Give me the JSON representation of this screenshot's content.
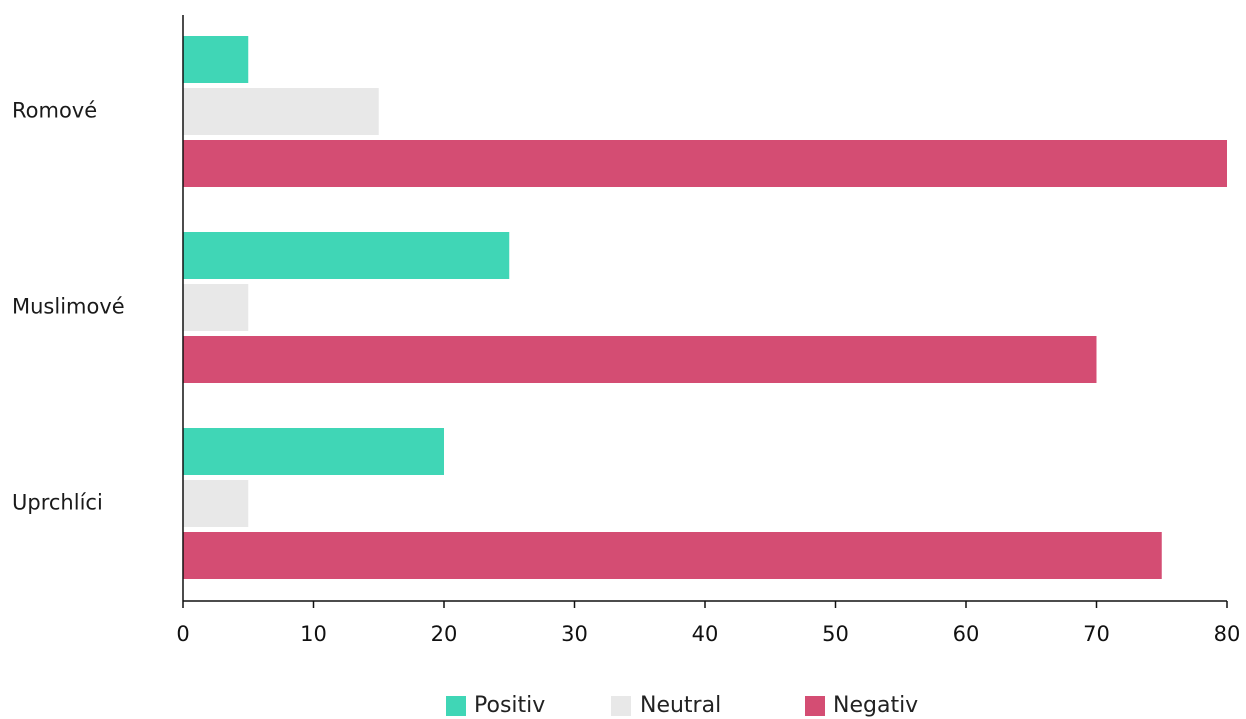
{
  "chart_data": {
    "type": "bar",
    "orientation": "horizontal",
    "categories": [
      "Romové",
      "Muslimové",
      "Uprchlíci"
    ],
    "series": [
      {
        "name": "Positiv",
        "color": "#40d6b6",
        "values": [
          5,
          25,
          20
        ]
      },
      {
        "name": "Neutral",
        "color": "#e8e8e8",
        "values": [
          15,
          5,
          5
        ]
      },
      {
        "name": "Negativ",
        "color": "#d44d73",
        "values": [
          80,
          70,
          75
        ]
      }
    ],
    "xlim": [
      0,
      80
    ],
    "xticks": [
      0,
      10,
      20,
      30,
      40,
      50,
      60,
      70,
      80
    ],
    "xtick_labels": [
      "0",
      "10",
      "20",
      "30",
      "40",
      "50",
      "60",
      "70",
      "80"
    ],
    "title": "",
    "xlabel": "",
    "ylabel": "",
    "grid": false,
    "legend_position": "bottom-center"
  }
}
